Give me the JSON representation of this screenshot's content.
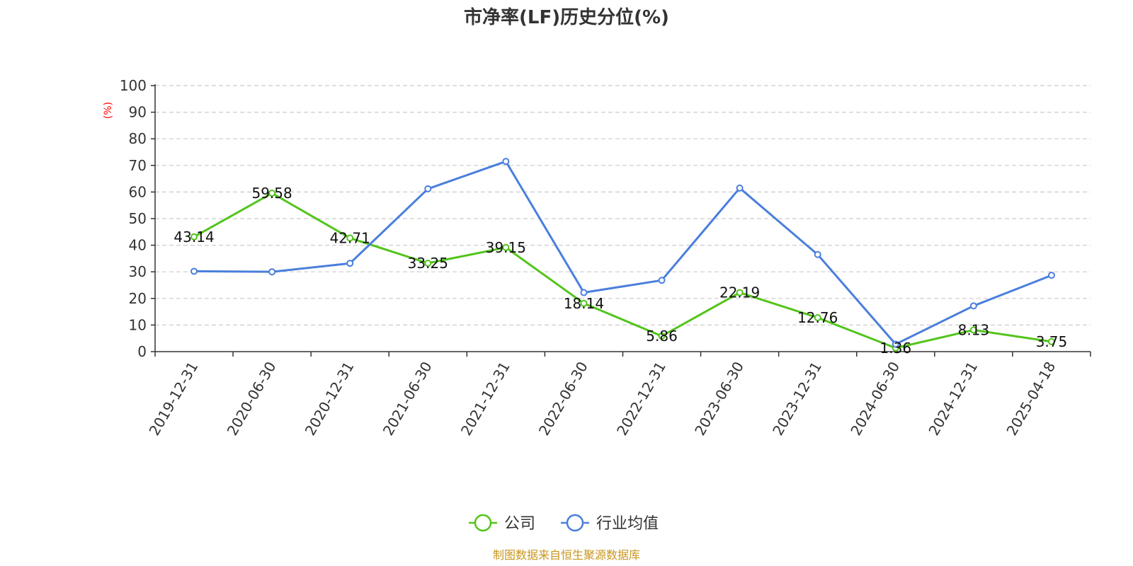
{
  "chart_data": {
    "type": "line",
    "title": "市净率(LF)历史分位(%)",
    "ylabel": "(%)",
    "ylim": [
      0,
      100
    ],
    "yticks": [
      0,
      10,
      20,
      30,
      40,
      50,
      60,
      70,
      80,
      90,
      100
    ],
    "grid": true,
    "legend_position": "bottom-center",
    "categories": [
      "2019-12-31",
      "2020-06-30",
      "2020-12-31",
      "2021-06-30",
      "2021-12-31",
      "2022-06-30",
      "2022-12-31",
      "2023-06-30",
      "2023-12-31",
      "2024-06-30",
      "2024-12-31",
      "2025-04-18"
    ],
    "series": [
      {
        "name": "公司",
        "color": "#52c41a",
        "show_labels": true,
        "values": [
          43.14,
          59.58,
          42.71,
          33.25,
          39.15,
          18.14,
          5.86,
          22.19,
          12.76,
          1.36,
          8.13,
          3.75
        ],
        "labels": [
          "43.14",
          "59.58",
          "42.71",
          "33.25",
          "39.15",
          "18.14",
          "5.86",
          "22.19",
          "12.76",
          "1.36",
          "8.13",
          "3.75"
        ]
      },
      {
        "name": "行业均值",
        "color": "#4a7fdc",
        "show_labels": false,
        "values": [
          30.2,
          30.0,
          33.2,
          61.2,
          71.5,
          22.2,
          26.8,
          61.5,
          36.5,
          2.8,
          17.2,
          28.7
        ]
      }
    ],
    "source": "制图数据来自恒生聚源数据库",
    "unit_color": "#ff0000",
    "source_color": "#c8961e"
  }
}
